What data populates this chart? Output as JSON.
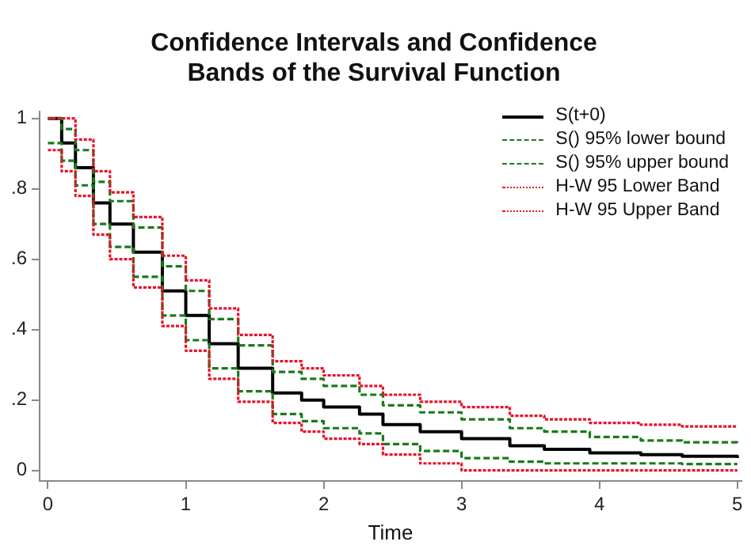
{
  "chart_data": {
    "type": "step",
    "title": "Confidence Intervals and Confidence Bands of the Survival Function",
    "xlabel": "Time",
    "x": [
      0,
      0.1,
      0.2,
      0.33,
      0.45,
      0.62,
      0.83,
      1,
      1.17,
      1.38,
      1.63,
      1.84,
      2,
      2.26,
      2.43,
      2.7,
      3,
      3.35,
      3.6,
      3.93,
      4.3,
      4.6,
      5
    ],
    "series": [
      {
        "name": "S(t+0)",
        "color": "#000000",
        "line_style": "solid",
        "values": [
          1,
          0.93,
          0.86,
          0.76,
          0.7,
          0.62,
          0.51,
          0.44,
          0.36,
          0.29,
          0.22,
          0.2,
          0.18,
          0.16,
          0.13,
          0.11,
          0.09,
          0.07,
          0.06,
          0.05,
          0.045,
          0.04,
          0.035
        ]
      },
      {
        "name": "S() 95% lower bound",
        "color": "#1a7a1a",
        "line_style": "dashed",
        "values": [
          0.93,
          0.88,
          0.81,
          0.7,
          0.635,
          0.55,
          0.44,
          0.37,
          0.29,
          0.225,
          0.16,
          0.14,
          0.12,
          0.105,
          0.075,
          0.055,
          0.035,
          0.025,
          0.02,
          0.02,
          0.02,
          0.018,
          0.018
        ]
      },
      {
        "name": "S() 95% upper bound",
        "color": "#1a7a1a",
        "line_style": "dashed",
        "values": [
          1,
          0.97,
          0.91,
          0.82,
          0.765,
          0.69,
          0.58,
          0.51,
          0.43,
          0.355,
          0.28,
          0.26,
          0.24,
          0.215,
          0.185,
          0.165,
          0.145,
          0.12,
          0.11,
          0.095,
          0.085,
          0.08,
          0.075
        ]
      },
      {
        "name": "H-W 95 Lower Band",
        "color": "#e8132b",
        "line_style": "dotted",
        "values": [
          0.91,
          0.85,
          0.78,
          0.67,
          0.6,
          0.52,
          0.41,
          0.34,
          0.26,
          0.195,
          0.135,
          0.11,
          0.09,
          0.075,
          0.045,
          0.02,
          0,
          0,
          0,
          0,
          0,
          0,
          0
        ]
      },
      {
        "name": "H-W 95 Upper Band",
        "color": "#e8132b",
        "line_style": "dotted",
        "values": [
          1,
          1,
          0.94,
          0.85,
          0.79,
          0.72,
          0.61,
          0.54,
          0.46,
          0.385,
          0.31,
          0.29,
          0.27,
          0.24,
          0.215,
          0.195,
          0.18,
          0.155,
          0.145,
          0.135,
          0.13,
          0.125,
          0.125
        ]
      }
    ],
    "xlim": [
      -0.06,
      5.03
    ],
    "xticks": [
      0,
      1,
      2,
      3,
      4,
      5
    ],
    "ylim": [
      -0.03,
      1.02
    ],
    "yticks": [
      0,
      {
        "value": 0.2,
        "label": ".2"
      },
      {
        "value": 0.4,
        "label": ".4"
      },
      {
        "value": 0.6,
        "label": ".6"
      },
      {
        "value": 0.8,
        "label": ".8"
      },
      1
    ],
    "grid": false,
    "legend": "top right"
  }
}
